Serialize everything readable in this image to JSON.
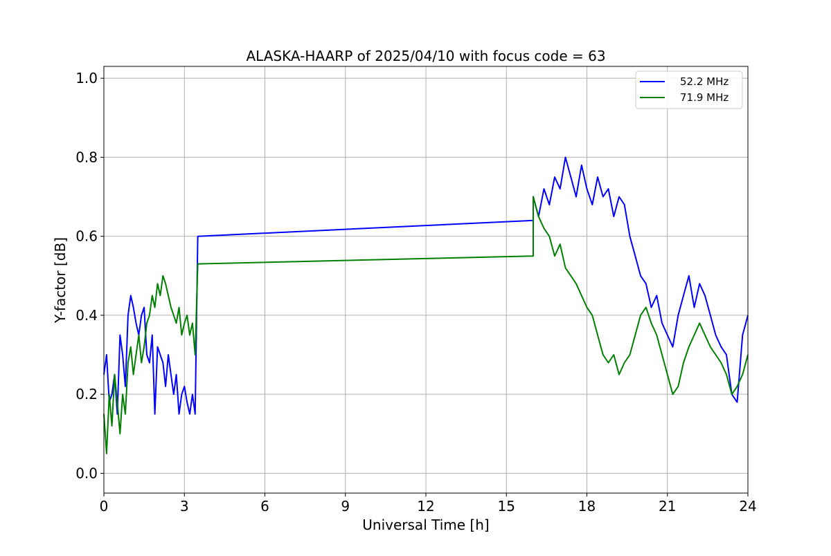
{
  "chart_data": {
    "type": "line",
    "title": "ALASKA-HAARP of 2025/04/10 with focus code = 63",
    "xlabel": "Universal Time [h]",
    "ylabel": "Y-factor [dB]",
    "xlim": [
      0,
      24
    ],
    "ylim": [
      -0.05,
      1.03
    ],
    "xticks": [
      0,
      3,
      6,
      9,
      12,
      15,
      18,
      21,
      24
    ],
    "xtick_labels": [
      "0",
      "3",
      "6",
      "9",
      "12",
      "15",
      "18",
      "21",
      "24"
    ],
    "yticks": [
      0.0,
      0.2,
      0.4,
      0.6,
      0.8,
      1.0
    ],
    "ytick_labels": [
      "0.0",
      "0.2",
      "0.4",
      "0.6",
      "0.8",
      "1.0"
    ],
    "grid": true,
    "legend_position": "top-right",
    "series": [
      {
        "name": "52.2 MHz",
        "color": "#0000ff",
        "x": [
          0.0,
          0.1,
          0.2,
          0.3,
          0.4,
          0.5,
          0.6,
          0.7,
          0.8,
          0.9,
          1.0,
          1.1,
          1.2,
          1.3,
          1.4,
          1.5,
          1.6,
          1.7,
          1.8,
          1.9,
          2.0,
          2.1,
          2.2,
          2.3,
          2.4,
          2.5,
          2.6,
          2.7,
          2.8,
          2.9,
          3.0,
          3.1,
          3.2,
          3.3,
          3.4,
          3.5,
          16.0,
          16.0,
          16.2,
          16.4,
          16.6,
          16.8,
          17.0,
          17.2,
          17.4,
          17.6,
          17.8,
          18.0,
          18.2,
          18.4,
          18.6,
          18.8,
          19.0,
          19.2,
          19.4,
          19.6,
          19.8,
          20.0,
          20.2,
          20.4,
          20.6,
          20.8,
          21.0,
          21.2,
          21.4,
          21.6,
          21.8,
          22.0,
          22.2,
          22.4,
          22.6,
          22.8,
          23.0,
          23.2,
          23.4,
          23.6,
          23.8,
          24.0
        ],
        "values": [
          0.25,
          0.3,
          0.18,
          0.2,
          0.25,
          0.15,
          0.35,
          0.3,
          0.22,
          0.4,
          0.45,
          0.42,
          0.38,
          0.35,
          0.4,
          0.42,
          0.3,
          0.28,
          0.35,
          0.15,
          0.32,
          0.3,
          0.28,
          0.22,
          0.3,
          0.25,
          0.2,
          0.25,
          0.15,
          0.2,
          0.22,
          0.18,
          0.15,
          0.2,
          0.15,
          0.6,
          0.64,
          0.7,
          0.65,
          0.72,
          0.68,
          0.75,
          0.72,
          0.8,
          0.75,
          0.7,
          0.78,
          0.72,
          0.68,
          0.75,
          0.7,
          0.72,
          0.65,
          0.7,
          0.68,
          0.6,
          0.55,
          0.5,
          0.48,
          0.42,
          0.45,
          0.38,
          0.35,
          0.32,
          0.4,
          0.45,
          0.5,
          0.42,
          0.48,
          0.45,
          0.4,
          0.35,
          0.32,
          0.3,
          0.2,
          0.18,
          0.35,
          0.4
        ]
      },
      {
        "name": "71.9 MHz",
        "color": "#008000",
        "x": [
          0.0,
          0.1,
          0.2,
          0.3,
          0.4,
          0.5,
          0.6,
          0.7,
          0.8,
          0.9,
          1.0,
          1.1,
          1.2,
          1.3,
          1.4,
          1.5,
          1.6,
          1.7,
          1.8,
          1.9,
          2.0,
          2.1,
          2.2,
          2.3,
          2.4,
          2.5,
          2.6,
          2.7,
          2.8,
          2.9,
          3.0,
          3.1,
          3.2,
          3.3,
          3.4,
          3.5,
          16.0,
          16.0,
          16.2,
          16.4,
          16.6,
          16.8,
          17.0,
          17.2,
          17.4,
          17.6,
          17.8,
          18.0,
          18.2,
          18.4,
          18.6,
          18.8,
          19.0,
          19.2,
          19.4,
          19.6,
          19.8,
          20.0,
          20.2,
          20.4,
          20.6,
          20.8,
          21.0,
          21.2,
          21.4,
          21.6,
          21.8,
          22.0,
          22.2,
          22.4,
          22.6,
          22.8,
          23.0,
          23.2,
          23.4,
          23.6,
          23.8,
          24.0
        ],
        "values": [
          0.15,
          0.05,
          0.2,
          0.12,
          0.25,
          0.18,
          0.1,
          0.2,
          0.15,
          0.28,
          0.32,
          0.25,
          0.3,
          0.35,
          0.28,
          0.32,
          0.38,
          0.4,
          0.45,
          0.42,
          0.48,
          0.45,
          0.5,
          0.48,
          0.45,
          0.42,
          0.4,
          0.38,
          0.42,
          0.35,
          0.38,
          0.4,
          0.35,
          0.38,
          0.3,
          0.53,
          0.55,
          0.7,
          0.65,
          0.62,
          0.6,
          0.55,
          0.58,
          0.52,
          0.5,
          0.48,
          0.45,
          0.42,
          0.4,
          0.35,
          0.3,
          0.28,
          0.3,
          0.25,
          0.28,
          0.3,
          0.35,
          0.4,
          0.42,
          0.38,
          0.35,
          0.3,
          0.25,
          0.2,
          0.22,
          0.28,
          0.32,
          0.35,
          0.38,
          0.35,
          0.32,
          0.3,
          0.28,
          0.25,
          0.2,
          0.22,
          0.25,
          0.3
        ]
      }
    ]
  }
}
